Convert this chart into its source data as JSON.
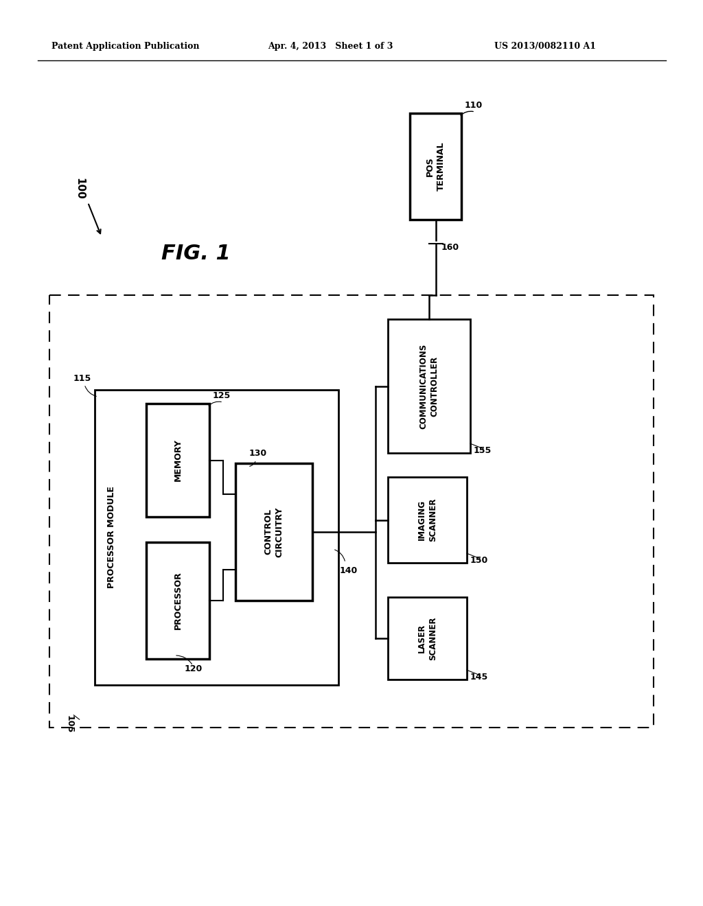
{
  "bg_color": "#ffffff",
  "header_left": "Patent Application Publication",
  "header_mid": "Apr. 4, 2013   Sheet 1 of 3",
  "header_right": "US 2013/0082110 A1",
  "fig_label": "FIG. 1",
  "ref_100": "100",
  "ref_105": "105",
  "ref_110": "110",
  "ref_115": "115",
  "ref_120": "120",
  "ref_125": "125",
  "ref_130": "130",
  "ref_140": "140",
  "ref_145": "145",
  "ref_150": "150",
  "ref_155": "155",
  "ref_160": "160",
  "lbl_pos_terminal": "POS\nTERMINAL",
  "lbl_comm_ctrl": "COMMUNICATIONS\nCONTROLLER",
  "lbl_imaging_scanner": "IMAGING\nSCANNER",
  "lbl_laser_scanner": "LASER\nSCANNER",
  "lbl_processor_module": "PROCESSOR MODULE",
  "lbl_memory": "MEMORY",
  "lbl_processor": "PROCESSOR",
  "lbl_control_circuitry": "CONTROL\nCIRCUITRY"
}
